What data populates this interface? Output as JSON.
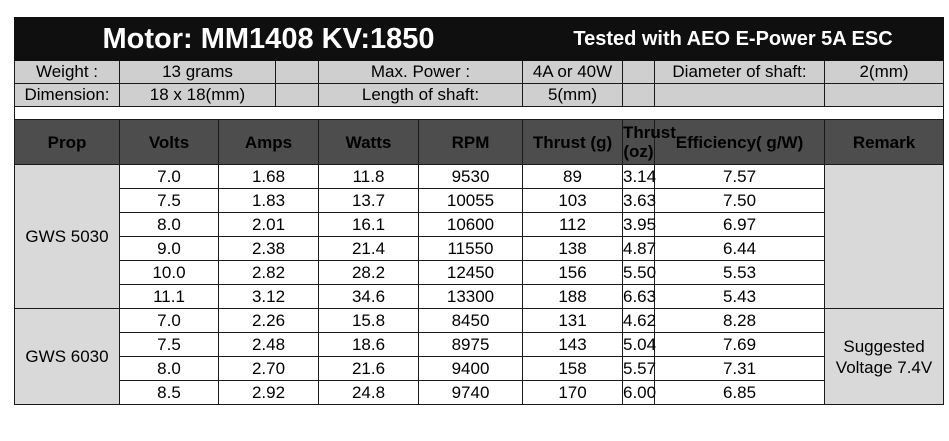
{
  "title": {
    "motor": "Motor: MM1408 KV:1850",
    "tested": "Tested with AEO E-Power 5A ESC"
  },
  "specs": {
    "weight_label": "Weight :",
    "weight_value": "13 grams",
    "max_power_label": "Max. Power :",
    "max_power_value": "4A or 40W",
    "shaft_diameter_label": "Diameter of shaft:",
    "shaft_diameter_value": "2(mm)",
    "dimension_label": "Dimension:",
    "dimension_value": "18 x 18(mm)",
    "shaft_length_label": "Length of shaft:",
    "shaft_length_value": "5(mm)"
  },
  "columns": [
    "Prop",
    "Volts",
    "Amps",
    "Watts",
    "RPM",
    "Thrust (g)",
    "Thrust (oz)",
    "Efficiency( g/W)",
    "Remark"
  ],
  "groups": [
    {
      "prop": "GWS 5030",
      "remark": "",
      "rows": [
        [
          "7.0",
          "1.68",
          "11.8",
          "9530",
          "89",
          "3.14",
          "7.57"
        ],
        [
          "7.5",
          "1.83",
          "13.7",
          "10055",
          "103",
          "3.63",
          "7.50"
        ],
        [
          "8.0",
          "2.01",
          "16.1",
          "10600",
          "112",
          "3.95",
          "6.97"
        ],
        [
          "9.0",
          "2.38",
          "21.4",
          "11550",
          "138",
          "4.87",
          "6.44"
        ],
        [
          "10.0",
          "2.82",
          "28.2",
          "12450",
          "156",
          "5.50",
          "5.53"
        ],
        [
          "11.1",
          "3.12",
          "34.6",
          "13300",
          "188",
          "6.63",
          "5.43"
        ]
      ]
    },
    {
      "prop": "GWS 6030",
      "remark": "Suggested Voltage 7.4V",
      "rows": [
        [
          "7.0",
          "2.26",
          "15.8",
          "8450",
          "131",
          "4.62",
          "8.28"
        ],
        [
          "7.5",
          "2.48",
          "18.6",
          "8975",
          "143",
          "5.04",
          "7.69"
        ],
        [
          "8.0",
          "2.70",
          "21.6",
          "9400",
          "158",
          "5.57",
          "7.31"
        ],
        [
          "8.5",
          "2.92",
          "24.8",
          "9740",
          "170",
          "6.00",
          "6.85"
        ]
      ]
    }
  ]
}
